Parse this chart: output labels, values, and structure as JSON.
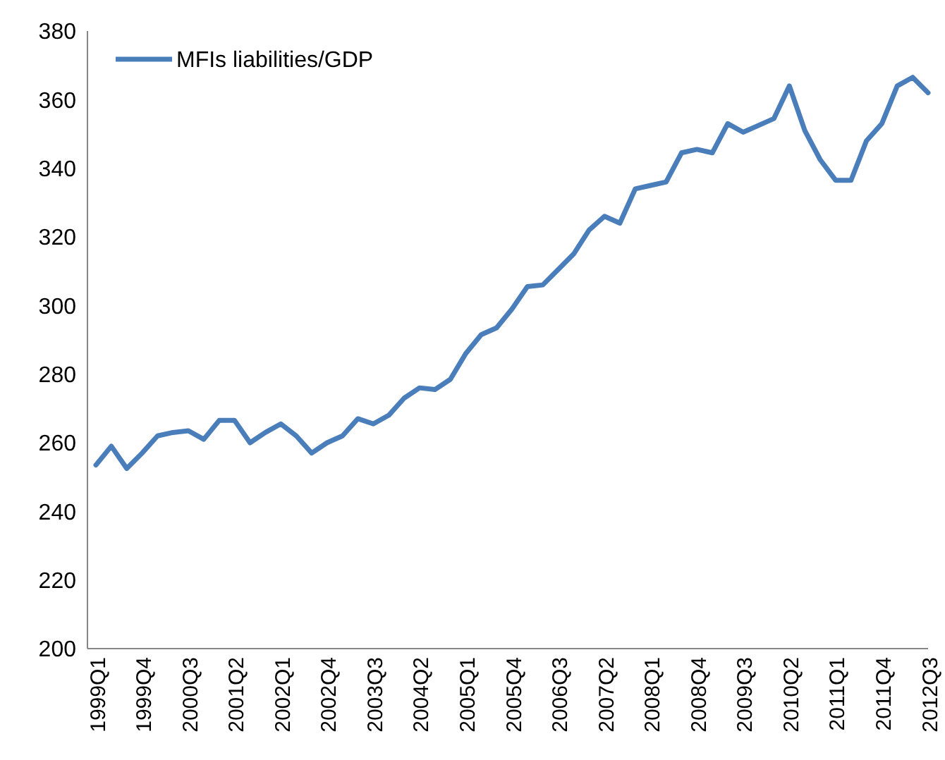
{
  "chart_data": {
    "type": "line",
    "categories": [
      "1999Q1",
      null,
      null,
      "1999Q4",
      null,
      null,
      "2000Q3",
      null,
      null,
      "2001Q2",
      null,
      null,
      "2002Q1",
      null,
      null,
      "2002Q4",
      null,
      null,
      "2003Q3",
      null,
      null,
      "2004Q2",
      null,
      null,
      "2005Q1",
      null,
      null,
      "2005Q4",
      null,
      null,
      "2006Q3",
      null,
      null,
      "2007Q2",
      null,
      null,
      "2008Q1",
      null,
      null,
      "2008Q4",
      null,
      null,
      "2009Q3",
      null,
      null,
      "2010Q2",
      null,
      null,
      "2011Q1",
      null,
      null,
      "2011Q4",
      null,
      null,
      "2012Q3"
    ],
    "series": [
      {
        "name": "MFIs liabilities/GDP",
        "color": "#4a7ebb",
        "values": [
          253.5,
          259,
          252.5,
          257,
          262,
          263,
          263.5,
          261,
          266.5,
          266.5,
          260,
          263,
          265.5,
          262,
          257,
          260,
          262,
          267,
          265.5,
          268,
          273,
          276,
          275.5,
          278.5,
          286,
          291.5,
          293.5,
          299,
          305.5,
          306,
          310.5,
          315,
          322,
          326,
          324,
          334,
          335,
          336,
          344.5,
          345.5,
          344.5,
          353,
          350.5,
          352.5,
          354.5,
          364,
          351,
          342.5,
          336.5,
          336.5,
          348,
          353,
          364,
          366.5,
          362
        ]
      }
    ],
    "ylim": [
      200,
      380
    ],
    "yticks": [
      200,
      220,
      240,
      260,
      280,
      300,
      320,
      340,
      360,
      380
    ],
    "grid": false,
    "legend": "top left",
    "marker": "none",
    "line_style": "solid"
  }
}
